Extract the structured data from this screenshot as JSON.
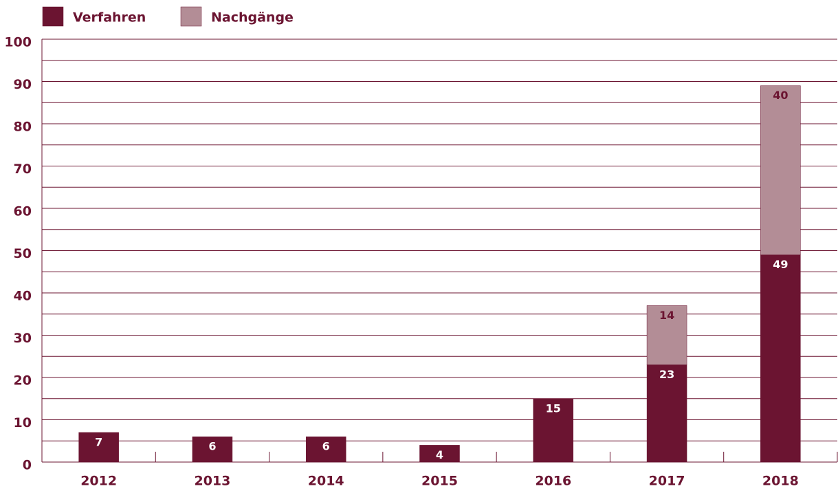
{
  "chart_data": {
    "type": "bar",
    "stacked": true,
    "categories": [
      "2012",
      "2013",
      "2014",
      "2015",
      "2016",
      "2017",
      "2018"
    ],
    "series": [
      {
        "name": "Verfahren",
        "color": "#6b1431",
        "values": [
          7,
          6,
          6,
          4,
          15,
          23,
          49
        ]
      },
      {
        "name": "Nachgänge",
        "color": "#b38d96",
        "values": [
          null,
          null,
          null,
          null,
          null,
          14,
          40
        ]
      }
    ],
    "ylim": [
      0,
      100
    ],
    "yticks": [
      0,
      10,
      20,
      30,
      40,
      50,
      60,
      70,
      80,
      90,
      100
    ],
    "minor_yticks": [
      5,
      15,
      25,
      35,
      45,
      55,
      65,
      75,
      85,
      95
    ],
    "grid": true,
    "legend": "top-left"
  }
}
